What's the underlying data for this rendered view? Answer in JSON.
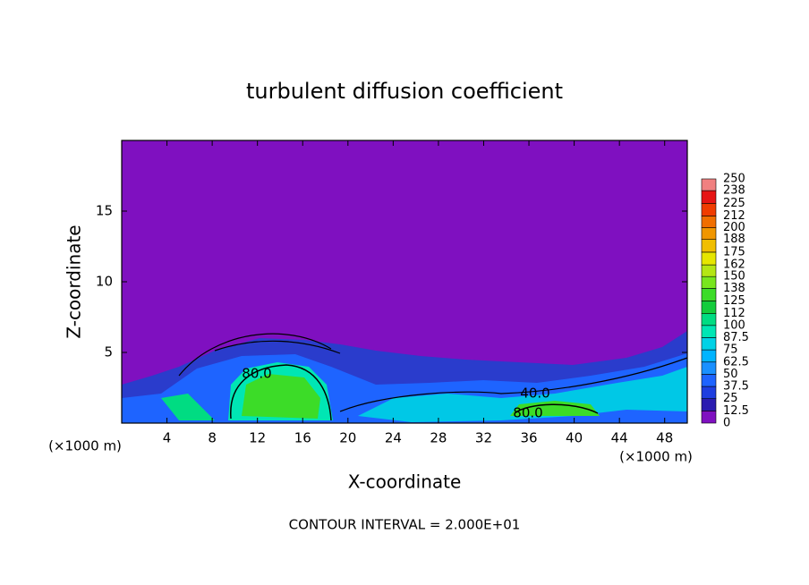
{
  "chart_data": {
    "type": "contour",
    "title": "turbulent diffusion coefficient",
    "x_label": "X-coordinate",
    "y_label": "Z-coordinate",
    "x_unit": "(×1000 m)",
    "y_unit": "(×1000 m)",
    "note": "CONTOUR INTERVAL = 2.000E+01",
    "xlim": [
      0,
      50
    ],
    "ylim": [
      0,
      20
    ],
    "xticks": [
      4,
      8,
      12,
      16,
      20,
      24,
      28,
      32,
      36,
      40,
      44,
      48
    ],
    "yticks": [
      5,
      10,
      15
    ],
    "contour_labels": [
      "80.0",
      "40.0",
      "80.0"
    ],
    "colorbar": {
      "levels": [
        0,
        12.5,
        25,
        37.5,
        50,
        62.5,
        75,
        87.5,
        100,
        112,
        125,
        138,
        150,
        162,
        175,
        188,
        200,
        212,
        225,
        238,
        250
      ],
      "colors": [
        "#7f10c0",
        "#2a1cb0",
        "#1e3ee0",
        "#1e64ff",
        "#1a90ff",
        "#00b4ff",
        "#00d2e6",
        "#00e6b4",
        "#00dc82",
        "#14cc3c",
        "#3cdc28",
        "#78e61e",
        "#b4e614",
        "#e6e600",
        "#f0be00",
        "#f09600",
        "#f06e00",
        "#f03c00",
        "#e61414",
        "#f08080"
      ]
    }
  }
}
